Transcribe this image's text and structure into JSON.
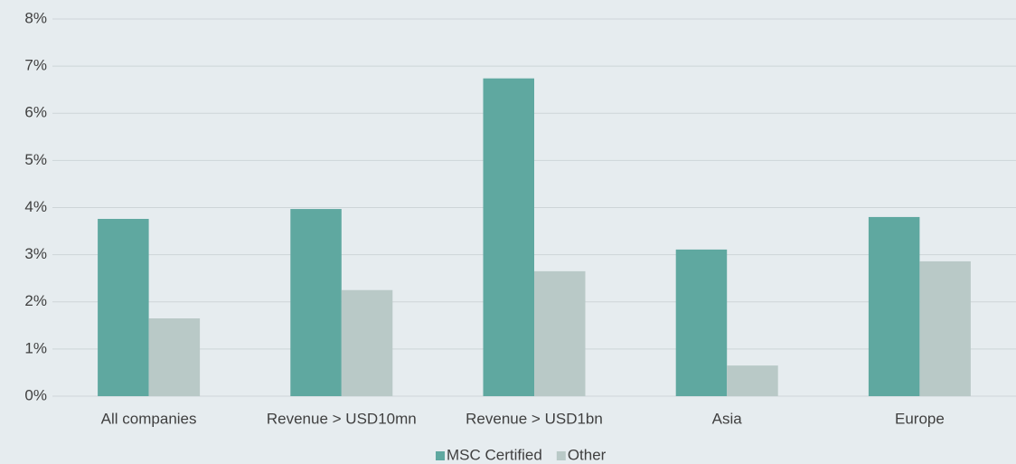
{
  "chart_data": {
    "type": "bar",
    "categories": [
      "All companies",
      "Revenue > USD10mn",
      "Revenue > USD1bn",
      "Asia",
      "Europe"
    ],
    "series": [
      {
        "name": "MSC Certified",
        "color": "#5fa8a0",
        "values": [
          3.76,
          3.97,
          6.74,
          3.11,
          3.8
        ]
      },
      {
        "name": "Other",
        "color": "#b9c9c7",
        "values": [
          1.65,
          2.25,
          2.65,
          0.65,
          2.86
        ]
      }
    ],
    "ylim": [
      0,
      8
    ],
    "yticks": [
      {
        "value": 0,
        "label": "0%"
      },
      {
        "value": 1,
        "label": "1%"
      },
      {
        "value": 2,
        "label": "2%"
      },
      {
        "value": 3,
        "label": "3%"
      },
      {
        "value": 4,
        "label": "4%"
      },
      {
        "value": 5,
        "label": "5%"
      },
      {
        "value": 6,
        "label": "6%"
      },
      {
        "value": 7,
        "label": "7%"
      },
      {
        "value": 8,
        "label": "8%"
      }
    ],
    "grid": true,
    "legend": "bottom"
  }
}
